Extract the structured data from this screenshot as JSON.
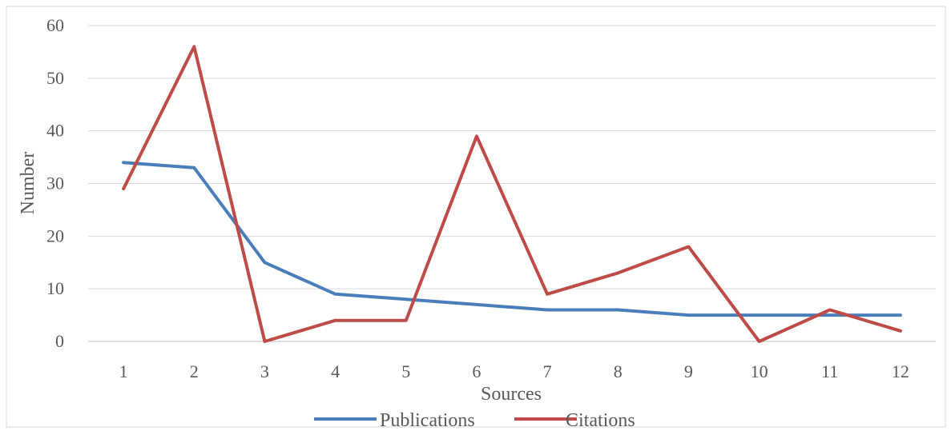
{
  "chart_data": {
    "type": "line",
    "title": "",
    "xlabel": "Sources",
    "ylabel": "Number",
    "categories": [
      "1",
      "2",
      "3",
      "4",
      "5",
      "6",
      "7",
      "8",
      "9",
      "10",
      "11",
      "12"
    ],
    "series": [
      {
        "name": "Publications",
        "color": "#4a7ebb",
        "values": [
          34,
          33,
          15,
          9,
          8,
          7,
          6,
          6,
          5,
          5,
          5,
          5
        ]
      },
      {
        "name": "Citations",
        "color": "#be4b48",
        "values": [
          29,
          56,
          0,
          4,
          4,
          39,
          9,
          13,
          18,
          0,
          6,
          2
        ]
      }
    ],
    "ylim": [
      0,
      60
    ],
    "yticks": [
      0,
      10,
      20,
      30,
      40,
      50,
      60
    ],
    "grid": "horizontal",
    "legend": "bottom"
  }
}
